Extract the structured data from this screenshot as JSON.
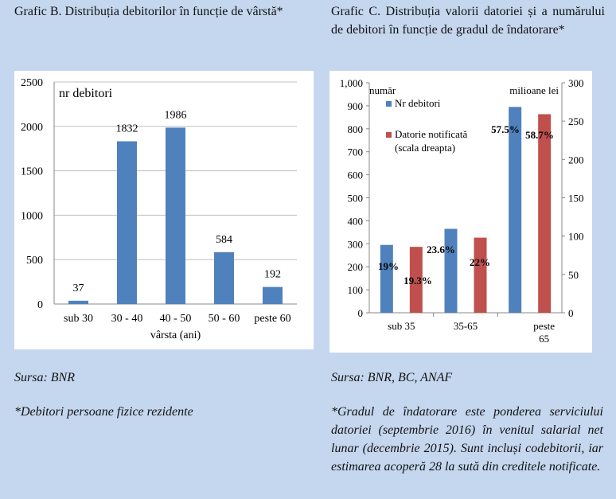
{
  "captions": {
    "left": "Grafic B. Distribuția debitorilor în funcție de vârstă*",
    "right": "Grafic C. Distribuția valorii datoriei și a numărului de debitori în funcție de gradul de îndatorare*"
  },
  "sources": {
    "left": "Sursa: BNR",
    "right": "Sursa: BNR, BC, ANAF"
  },
  "notes": {
    "left": "*Debitori persoane fizice rezidente",
    "right": "*Gradul de îndatorare este ponderea serviciului datoriei (septembrie 2016) în venitul salarial net lunar (decembrie 2015). Sunt incluși codebitorii, iar estimarea acoperă 28 la sută din creditele notificate."
  },
  "colors": {
    "blue": "#4f81bd",
    "red": "#c0504d"
  },
  "chart_data": [
    {
      "type": "bar",
      "categories": [
        "sub 30",
        "30 - 40",
        "40 - 50",
        "50 - 60",
        "peste 60"
      ],
      "values": [
        37,
        1832,
        1986,
        584,
        192
      ],
      "data_labels": [
        "37",
        "1832",
        "1986",
        "584",
        "192"
      ],
      "title": "",
      "series_label": "nr debitori",
      "xlabel": "vârsta (ani)",
      "ylabel": "",
      "ylim": [
        0,
        2500
      ],
      "yticks": [
        "0",
        "500",
        "1000",
        "1500",
        "2000",
        "2500"
      ],
      "grid": true
    },
    {
      "type": "bar",
      "categories": [
        "sub 35",
        "35-65",
        "peste 65"
      ],
      "left_axis_label": "număr",
      "right_axis_label": "milioane lei",
      "ylim_left": [
        0,
        1000
      ],
      "yticks_left": [
        "0",
        "100",
        "200",
        "300",
        "400",
        "500",
        "600",
        "700",
        "800",
        "900",
        "1,000"
      ],
      "ylim_right": [
        0,
        300
      ],
      "yticks_right": [
        "0",
        "50",
        "100",
        "150",
        "200",
        "250",
        "300"
      ],
      "grid": false,
      "legend_position": "top-left",
      "series": [
        {
          "name": "Nr debitori",
          "axis": "left",
          "values": [
            295,
            365,
            895
          ],
          "percent_labels": [
            "19%",
            "23.6%",
            "57.5%"
          ]
        },
        {
          "name": "Datorie notificată (scala dreapta)",
          "axis": "right",
          "values": [
            86,
            98,
            259
          ],
          "percent_labels": [
            "19.3%",
            "22%",
            "58.7%"
          ]
        }
      ]
    }
  ]
}
